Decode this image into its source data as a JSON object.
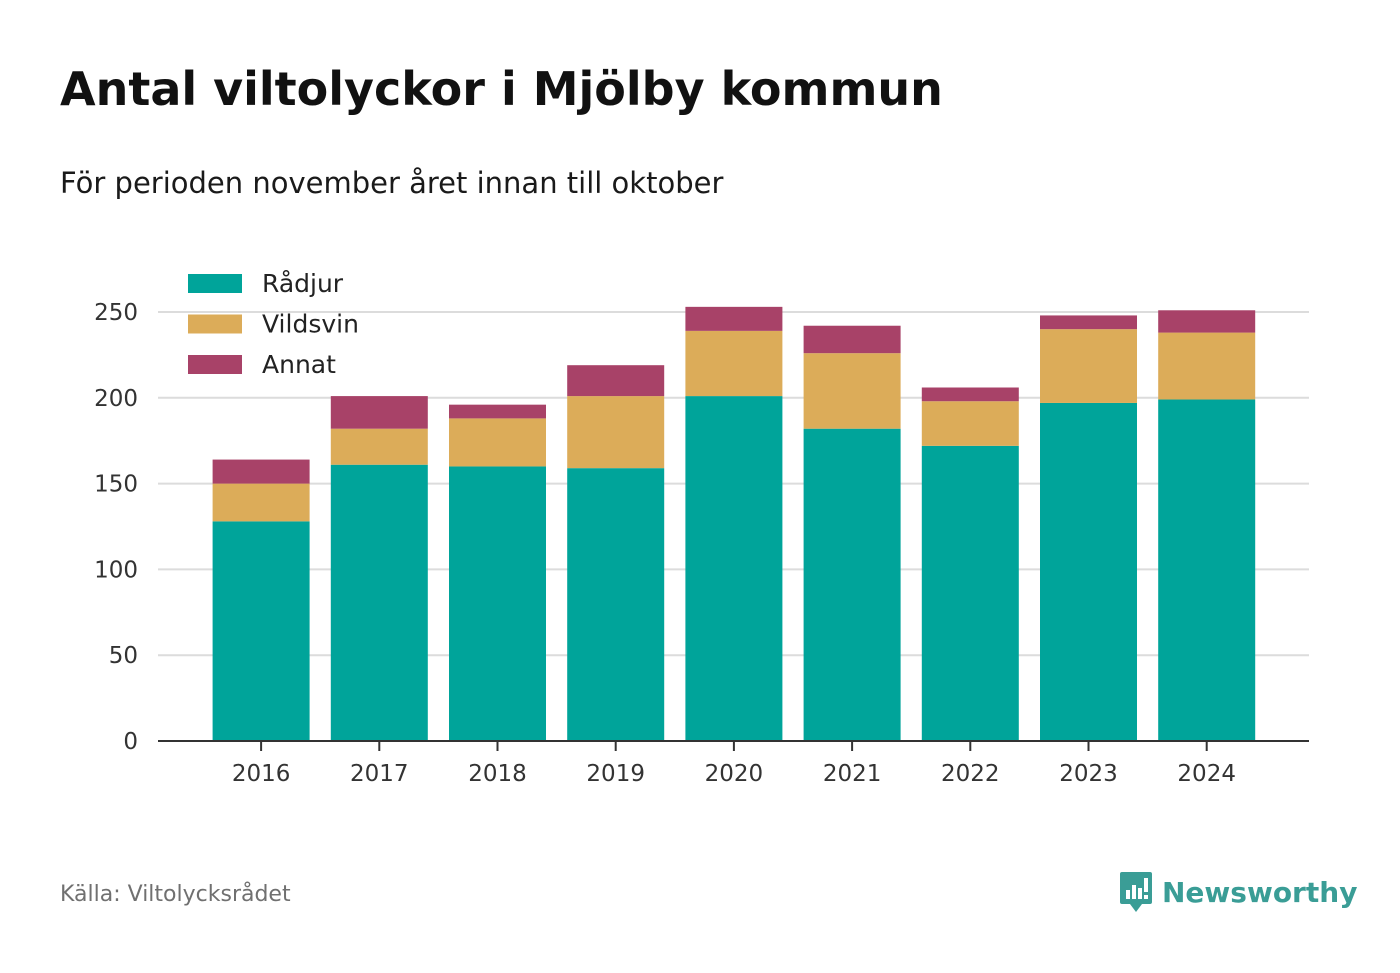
{
  "header": {
    "title": "Antal viltolyckor i Mjölby kommun",
    "subtitle": "För perioden november året innan till oktober"
  },
  "footer": {
    "source": "Källa: Viltolycksrådet",
    "brand": "Newsworthy"
  },
  "colors": {
    "radjur": "#00a49a",
    "vildsvin": "#dcac59",
    "annat": "#a84268",
    "grid": "#dcdcdc",
    "axis": "#333333",
    "brand": "#3a9d96"
  },
  "chart_data": {
    "type": "bar",
    "stacked": true,
    "categories": [
      "2016",
      "2017",
      "2018",
      "2019",
      "2020",
      "2021",
      "2022",
      "2023",
      "2024"
    ],
    "series": [
      {
        "name": "Rådjur",
        "values": [
          128,
          161,
          160,
          159,
          201,
          182,
          172,
          197,
          199
        ]
      },
      {
        "name": "Vildsvin",
        "values": [
          22,
          21,
          28,
          42,
          38,
          44,
          26,
          43,
          39
        ]
      },
      {
        "name": "Annat",
        "values": [
          14,
          19,
          8,
          18,
          14,
          16,
          8,
          8,
          13
        ]
      }
    ],
    "yticks": [
      0,
      50,
      100,
      150,
      200,
      250
    ],
    "ylim": [
      0,
      260
    ],
    "grid": true,
    "legend": "top-left"
  }
}
